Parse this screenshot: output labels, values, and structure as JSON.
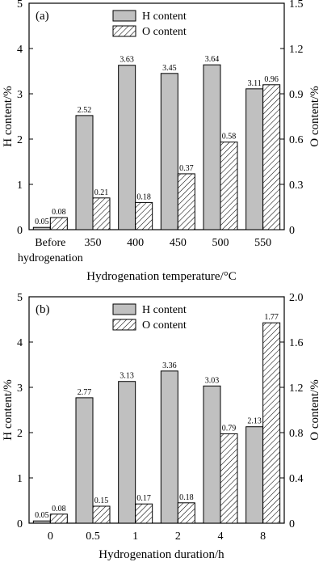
{
  "chart_data": [
    {
      "type": "bar",
      "panel_label": "(a)",
      "categories": [
        "Before hydrogenation",
        "350",
        "400",
        "450",
        "500",
        "550"
      ],
      "category_lines": [
        [
          "Before",
          "hydrogenation"
        ],
        [
          "350"
        ],
        [
          "400"
        ],
        [
          "450"
        ],
        [
          "500"
        ],
        [
          "550"
        ]
      ],
      "xlabel": "Hydrogenation temperature/°C",
      "ylabel_left": "H content/%",
      "ylabel_right": "O content/%",
      "ylim_left": [
        0,
        5
      ],
      "ylim_right": [
        0,
        1.5
      ],
      "yticks_left": [
        "0",
        "1",
        "2",
        "3",
        "4",
        "5"
      ],
      "yticks_right": [
        "0",
        "0.3",
        "0.6",
        "0.9",
        "1.2",
        "1.5"
      ],
      "grid": false,
      "legend_position": "top-center",
      "series": [
        {
          "name": "H content",
          "axis": "left",
          "fill": "gray",
          "values": [
            0.05,
            2.52,
            3.63,
            3.45,
            3.64,
            3.11
          ],
          "labels": [
            "0.05",
            "2.52",
            "3.63",
            "3.45",
            "3.64",
            "3.11"
          ]
        },
        {
          "name": "O content",
          "axis": "right",
          "fill": "hatched",
          "values": [
            0.08,
            0.21,
            0.18,
            0.37,
            0.58,
            0.96
          ],
          "labels": [
            "0.08",
            "0.21",
            "0.18",
            "0.37",
            "0.58",
            "0.96"
          ]
        }
      ]
    },
    {
      "type": "bar",
      "panel_label": "(b)",
      "categories": [
        "0",
        "0.5",
        "1",
        "2",
        "4",
        "8"
      ],
      "category_lines": [
        [
          "0"
        ],
        [
          "0.5"
        ],
        [
          "1"
        ],
        [
          "2"
        ],
        [
          "4"
        ],
        [
          "8"
        ]
      ],
      "xlabel": "Hydrogenation duration/h",
      "ylabel_left": "H content/%",
      "ylabel_right": "O content/%",
      "ylim_left": [
        0,
        5
      ],
      "ylim_right": [
        0,
        2.0
      ],
      "yticks_left": [
        "0",
        "1",
        "2",
        "3",
        "4",
        "5"
      ],
      "yticks_right": [
        "0",
        "0.4",
        "0.8",
        "1.2",
        "1.6",
        "2.0"
      ],
      "grid": false,
      "legend_position": "top-center",
      "series": [
        {
          "name": "H content",
          "axis": "left",
          "fill": "gray",
          "values": [
            0.05,
            2.77,
            3.13,
            3.36,
            3.03,
            2.13
          ],
          "labels": [
            "0.05",
            "2.77",
            "3.13",
            "3.36",
            "3.03",
            "2.13"
          ]
        },
        {
          "name": "O content",
          "axis": "right",
          "fill": "hatched",
          "values": [
            0.08,
            0.15,
            0.17,
            0.18,
            0.79,
            1.77
          ],
          "labels": [
            "0.08",
            "0.15",
            "0.17",
            "0.18",
            "0.79",
            "1.77"
          ]
        }
      ]
    }
  ],
  "colors": {
    "h_bar_fill": "#c0c0c0",
    "o_bar_hatch": "#000000",
    "axis": "#000000",
    "background": "#ffffff"
  }
}
